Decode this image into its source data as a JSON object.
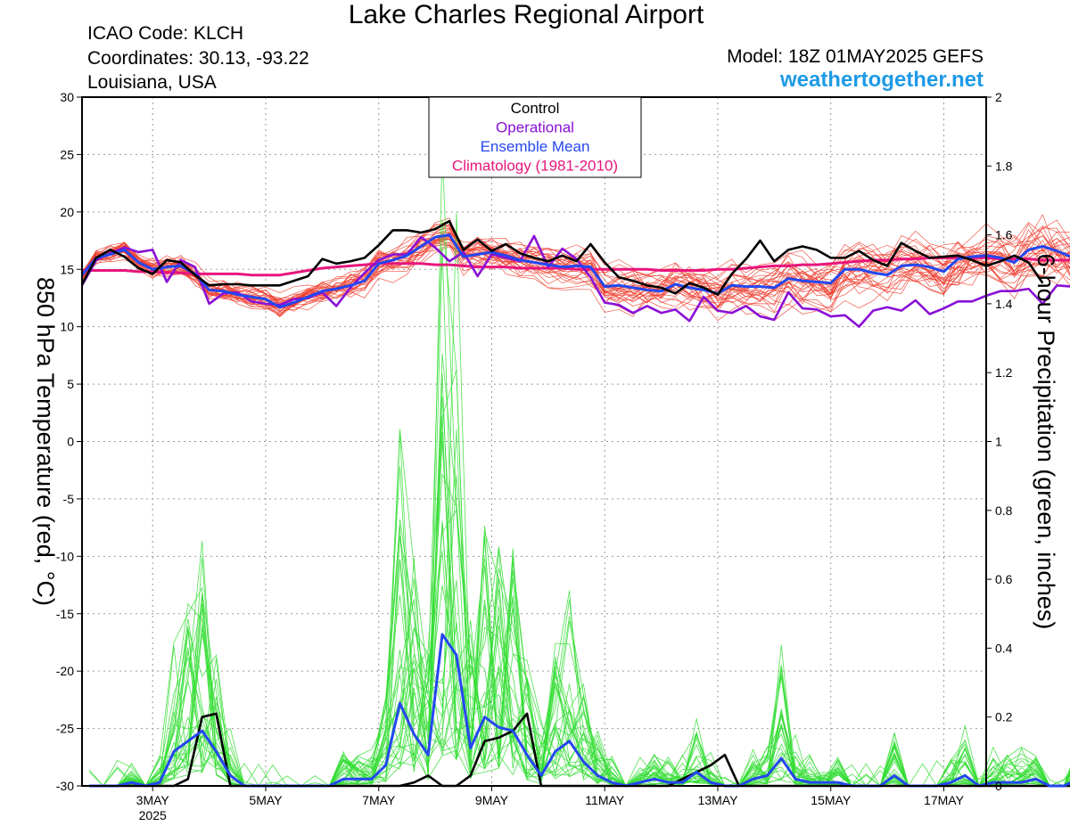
{
  "header": {
    "title": "Lake Charles Regional Airport",
    "icao": "ICAO Code: KLCH",
    "coords": "Coordinates: 30.13, -93.22",
    "region": "Louisiana, USA",
    "model": "Model: 18Z 01MAY2025 GEFS",
    "site": "weathertogether.net"
  },
  "colors": {
    "control": "#000000",
    "operational": "#8a10d6",
    "ensemble_mean": "#2447f0",
    "climatology": "#e8157c",
    "members_temp": "#ef3b2c",
    "members_precip": "#33dd33",
    "site": "#1e9ae6"
  },
  "chart_data": {
    "type": "line",
    "title": "Lake Charles Regional Airport",
    "ylabel": "850 hPa Temperature (red, °C)",
    "ylabel_right": "6-hour Precipitation (green, inches)",
    "ylim": [
      -30,
      30
    ],
    "ylim_right": [
      0,
      2
    ],
    "yticks": [
      30,
      25,
      20,
      15,
      10,
      5,
      0,
      -5,
      -10,
      -15,
      -20,
      -25,
      -30
    ],
    "yticks_right": [
      "2",
      "1.8",
      "1.6",
      "1.4",
      "1.2",
      "1",
      "0.8",
      "0.6",
      "0.4",
      "0.2",
      "0"
    ],
    "x_label_days": [
      3,
      5,
      7,
      9,
      11,
      13,
      15,
      17
    ],
    "x_labels": [
      "3MAY",
      "5MAY",
      "7MAY",
      "9MAY",
      "11MAY",
      "13MAY",
      "15MAY",
      "17MAY"
    ],
    "x_year": "2025",
    "x_range_days": [
      1.75,
      17.75
    ],
    "grid": true,
    "legend_position": "top-center",
    "legend": [
      "Control",
      "Operational",
      "Ensemble Mean",
      "Climatology (1981-2010)"
    ],
    "series": [
      {
        "name": "Control",
        "axis": "left",
        "color": "#000000",
        "start_day": 1.75,
        "step_days": 0.25,
        "values": [
          13.7,
          16.0,
          16.7,
          16.1,
          15.1,
          14.6,
          15.8,
          15.6,
          14.5,
          13.6,
          13.7,
          13.7,
          13.6,
          13.6,
          13.6,
          14.0,
          14.4,
          15.9,
          15.5,
          15.7,
          16.0,
          17.1,
          18.4,
          18.4,
          18.2,
          18.5,
          19.2,
          16.7,
          17.6,
          16.6,
          17.2,
          16.4,
          16.0,
          15.7,
          16.2,
          15.7,
          17.2,
          15.6,
          14.3,
          14.0,
          13.6,
          13.4,
          12.9,
          13.8,
          13.4,
          12.8,
          14.6,
          15.9,
          17.5,
          15.7,
          16.7,
          17.0,
          16.7,
          16.0,
          16.0,
          16.6,
          15.8,
          15.3,
          17.3,
          16.6,
          16.0,
          16.1,
          16.2,
          15.8,
          15.3,
          15.7,
          16.2,
          15.6,
          13.8
        ]
      },
      {
        "name": "Operational",
        "axis": "left",
        "color": "#8a10d6",
        "start_day": 1.75,
        "step_days": 0.25,
        "values": [
          13.6,
          15.8,
          16.4,
          16.9,
          16.5,
          16.7,
          13.9,
          15.8,
          15.2,
          12.0,
          12.9,
          13.0,
          12.2,
          12.0,
          11.9,
          12.4,
          12.5,
          13.0,
          11.8,
          13.4,
          14.7,
          15.8,
          16.3,
          16.3,
          17.8,
          16.9,
          15.7,
          16.5,
          14.4,
          16.3,
          16.0,
          15.7,
          17.9,
          15.2,
          16.8,
          15.9,
          14.3,
          12.1,
          11.9,
          11.2,
          11.8,
          11.2,
          11.5,
          10.5,
          12.6,
          11.4,
          11.2,
          11.8,
          10.9,
          10.6,
          13.0,
          11.6,
          11.5,
          10.9,
          11.0,
          10.0,
          11.4,
          11.7,
          11.4,
          12.3,
          11.1,
          11.6,
          12.2,
          12.2,
          12.7,
          13.1,
          13.1,
          13.3,
          12.0,
          13.6,
          13.5,
          13.5,
          13.9,
          14.4,
          13.2,
          14.9,
          16.0,
          16.1,
          15.6,
          15.2,
          15.7,
          14.8,
          14.5,
          16.3,
          15.9,
          15.7,
          16.2
        ]
      },
      {
        "name": "Ensemble Mean",
        "axis": "left",
        "color": "#2447f0",
        "start_day": 1.75,
        "step_days": 0.25,
        "values": [
          14.5,
          16.0,
          16.3,
          16.7,
          15.6,
          15.0,
          15.2,
          15.3,
          14.6,
          13.2,
          13.1,
          12.8,
          12.6,
          12.4,
          11.7,
          12.1,
          12.6,
          13.1,
          13.3,
          13.6,
          14.0,
          15.5,
          15.8,
          16.2,
          17.0,
          17.8,
          18.0,
          16.1,
          16.3,
          16.5,
          16.2,
          15.8,
          15.6,
          15.4,
          15.2,
          15.3,
          15.2,
          13.5,
          13.6,
          13.4,
          13.2,
          13.1,
          13.7,
          13.4,
          13.2,
          12.9,
          13.6,
          13.5,
          13.5,
          13.4,
          14.2,
          14.0,
          13.9,
          13.8,
          15.0,
          15.0,
          14.7,
          14.5,
          15.3,
          15.4,
          15.2,
          14.8,
          15.9,
          16.1,
          16.2,
          16.0,
          15.6,
          16.7,
          17.0,
          16.6,
          16.1
        ]
      },
      {
        "name": "Climatology (1981-2010)",
        "axis": "left",
        "color": "#e8157c",
        "start_day": 1.75,
        "step_days": 0.25,
        "values": [
          14.9,
          14.9,
          14.9,
          14.9,
          14.8,
          14.8,
          14.7,
          14.7,
          14.6,
          14.6,
          14.6,
          14.6,
          14.5,
          14.5,
          14.5,
          14.7,
          14.9,
          15.1,
          15.2,
          15.3,
          15.4,
          15.5,
          15.5,
          15.5,
          15.5,
          15.4,
          15.4,
          15.3,
          15.2,
          15.2,
          15.2,
          15.1,
          15.1,
          15.1,
          15.1,
          15.0,
          15.0,
          15.0,
          15.0,
          15.0,
          15.0,
          14.9,
          14.9,
          14.9,
          14.9,
          15.0,
          15.0,
          15.1,
          15.2,
          15.3,
          15.3,
          15.4,
          15.4,
          15.5,
          15.6,
          15.7,
          15.8,
          15.8,
          15.9,
          15.9,
          16.0,
          16.0,
          16.0,
          16.0,
          16.0,
          15.9,
          15.9,
          15.9,
          15.8,
          15.8,
          15.8
        ]
      },
      {
        "name": "Control",
        "axis": "right",
        "color": "#000000",
        "start_day": 1.875,
        "step_days": 0.25,
        "values": [
          0,
          0,
          0,
          0,
          0,
          0,
          0,
          0.02,
          0.2,
          0.21,
          0,
          0,
          0,
          0,
          0,
          0,
          0,
          0,
          0,
          0,
          0,
          0,
          0,
          0.01,
          0.03,
          0,
          0,
          0.03,
          0.13,
          0.14,
          0.16,
          0.21,
          0,
          0,
          0,
          0,
          0,
          0,
          0,
          0,
          0,
          0,
          0.02,
          0.04,
          0.06,
          0.09,
          0,
          0,
          0,
          0,
          0,
          0,
          0,
          0,
          0,
          0,
          0,
          0,
          0,
          0,
          0,
          0,
          0,
          0,
          0,
          0,
          0,
          0,
          0,
          0,
          0,
          0,
          0,
          0,
          0,
          0,
          0,
          0,
          0,
          0,
          0,
          0,
          0,
          0,
          0,
          0,
          0,
          0,
          0,
          0.15,
          0.15,
          0,
          0,
          0
        ]
      },
      {
        "name": "Ensemble Mean",
        "axis": "right",
        "color": "#2447f0",
        "start_day": 1.875,
        "step_days": 0.25,
        "values": [
          0,
          0,
          0,
          0.01,
          0,
          0.01,
          0.1,
          0.13,
          0.16,
          0.1,
          0.03,
          0,
          0,
          0,
          0,
          0,
          0,
          0,
          0.02,
          0.02,
          0.02,
          0.06,
          0.24,
          0.15,
          0.09,
          0.44,
          0.38,
          0.11,
          0.2,
          0.17,
          0.16,
          0.09,
          0.03,
          0.1,
          0.13,
          0.07,
          0.03,
          0.01,
          0,
          0.01,
          0.02,
          0.01,
          0.01,
          0.04,
          0.01,
          0,
          0,
          0.02,
          0.03,
          0.08,
          0.02,
          0.01,
          0.01,
          0.01,
          0,
          0,
          0,
          0.03,
          0,
          0,
          0,
          0.01,
          0.03,
          0,
          0.01,
          0.01,
          0.01,
          0.02,
          0,
          0,
          0.02,
          0.03,
          0.01,
          0.02,
          0.03
        ]
      }
    ],
    "members": {
      "count": 30,
      "temperature_color": "#ef3b2c",
      "precip_color": "#33dd33"
    }
  }
}
